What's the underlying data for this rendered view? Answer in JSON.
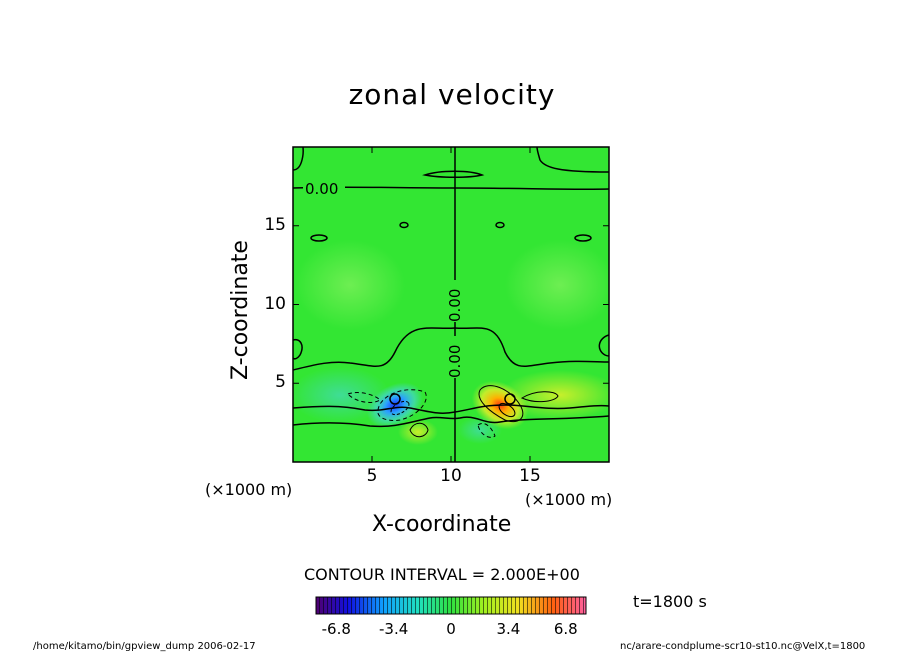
{
  "chart_data": {
    "type": "heatmap",
    "title": "zonal velocity",
    "xlabel": "X-coordinate",
    "ylabel": "Z-coordinate",
    "x_unit": "(×1000 m)",
    "x_ticks": [
      5,
      10,
      15
    ],
    "y_ticks": [
      5,
      10,
      15
    ],
    "xlim": [
      0,
      20
    ],
    "ylim": [
      0,
      20
    ],
    "contour_labels": [
      {
        "text": "0.00",
        "x": 2.5,
        "y": 17.2
      },
      {
        "text": "0.00",
        "x": 10,
        "y": 9.8
      },
      {
        "text": "0.00",
        "x": 10,
        "y": 5.8
      }
    ],
    "anomalies": [
      {
        "x": 7.0,
        "y": 3.3,
        "value": -6.8
      },
      {
        "x": 13.5,
        "y": 3.3,
        "value": 6.8
      }
    ],
    "contour_interval": "CONTOUR INTERVAL = 2.000E+00",
    "time": "t=1800 s",
    "colorbar": {
      "min": -8,
      "max": 8,
      "tick_labels": [
        "-6.8",
        "-3.4",
        "0",
        "3.4",
        "6.8"
      ],
      "tick_values": [
        -6.8,
        -3.4,
        0,
        3.4,
        6.8
      ]
    },
    "colors": {
      "background_field": "#33e633",
      "negative_peak": "#1a33ff",
      "positive_peak": "#ff4a1a"
    }
  },
  "footer": {
    "left": "/home/kitamo/bin/gpview_dump  2006-02-17",
    "right": "nc/arare-condplume-scr10-st10.nc@VelX,t=1800"
  }
}
